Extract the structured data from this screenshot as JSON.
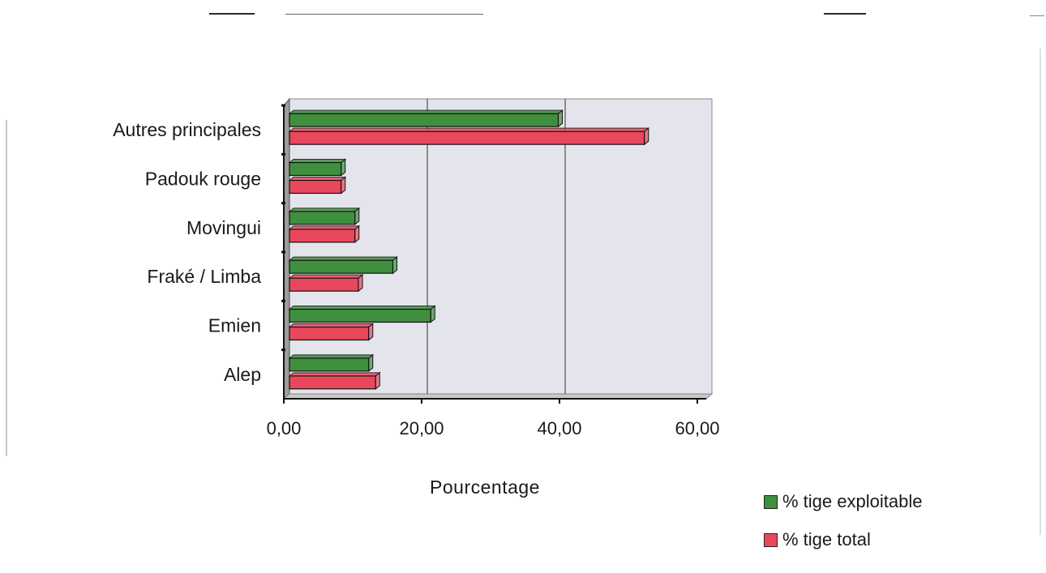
{
  "chart_data": {
    "type": "bar",
    "orientation": "horizontal",
    "categories": [
      "Autres principales",
      "Padouk rouge",
      "Movingui",
      "Fraké / Limba",
      "Emien",
      "Alep"
    ],
    "series": [
      {
        "name": "% tige exploitable",
        "color": "#3f8f3f",
        "values": [
          39.0,
          7.5,
          9.5,
          15.0,
          20.5,
          11.5
        ]
      },
      {
        "name": "% tige total",
        "color": "#e8485c",
        "values": [
          51.5,
          7.5,
          9.5,
          10.0,
          11.5,
          12.5
        ]
      }
    ],
    "x_ticks": [
      "0,00",
      "20,00",
      "40,00",
      "60,00"
    ],
    "xlim": [
      0,
      60
    ],
    "xlabel": "Pourcentage",
    "grid": "vertical",
    "legend_position": "bottom-right",
    "plot_background": "#e4e4ec"
  }
}
